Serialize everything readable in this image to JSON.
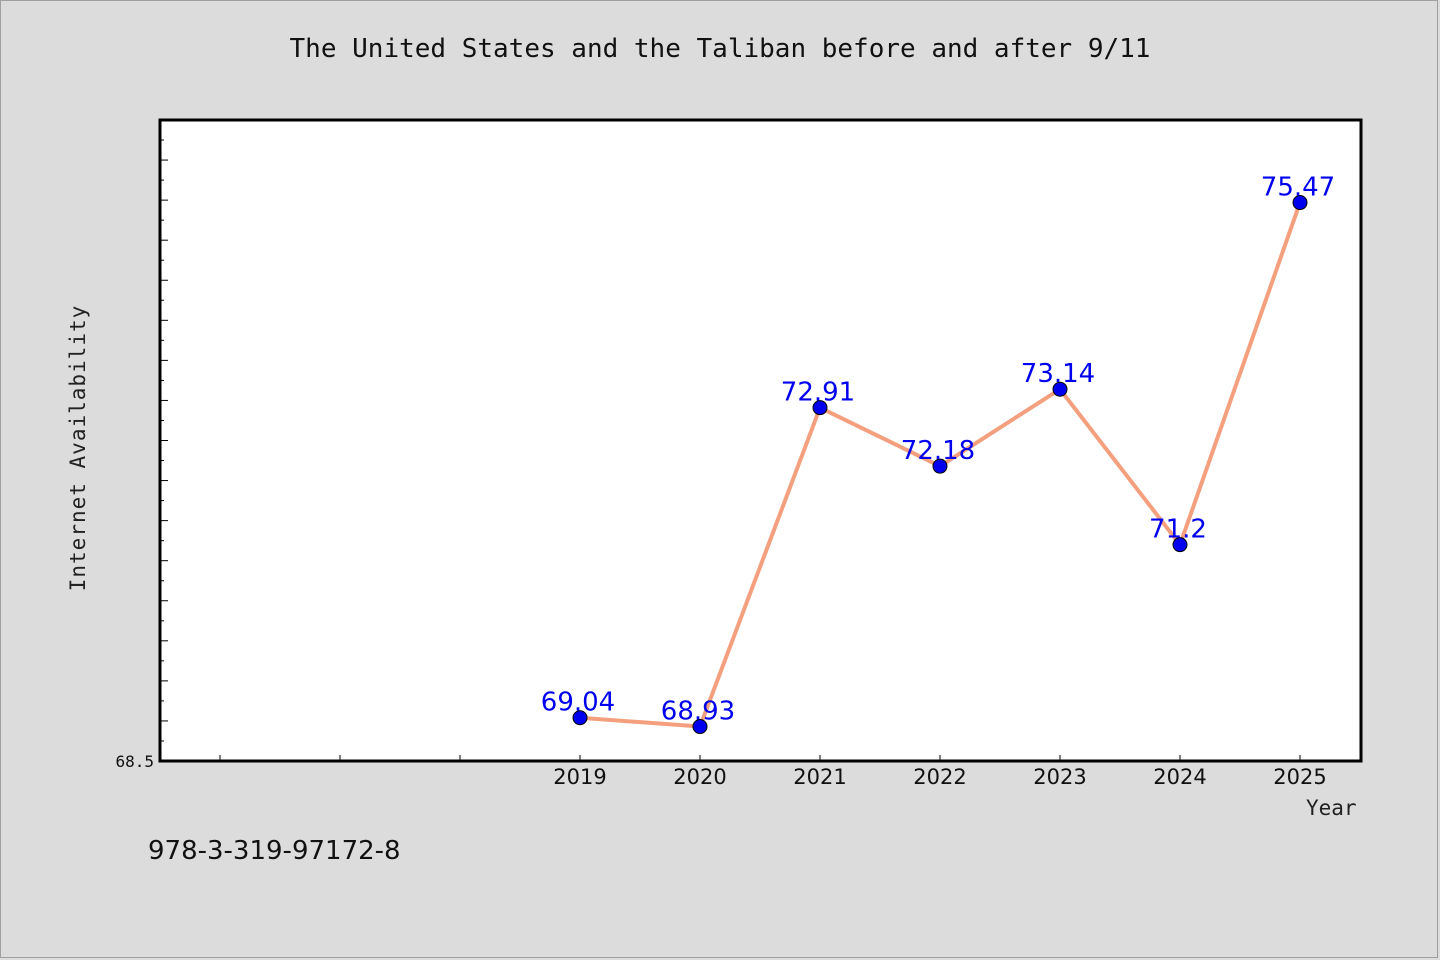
{
  "chart_data": {
    "type": "line",
    "title": "The United States and the Taliban before and after 9/11",
    "xlabel": "Year",
    "ylabel": "Internet Availability",
    "categories": [
      "2019",
      "2020",
      "2021",
      "2022",
      "2023",
      "2024",
      "2025"
    ],
    "series": [
      {
        "values": [
          69.04,
          68.93,
          72.91,
          72.18,
          73.14,
          71.2,
          75.47
        ]
      }
    ],
    "data_labels": [
      "69.04",
      "68.93",
      "72.91",
      "72.18",
      "73.14",
      "71.2",
      "75.47"
    ],
    "y_tick_labels": [
      "68.5"
    ],
    "ylim": [
      68.5,
      76.5
    ],
    "grid": false,
    "line_color": "#f4a07f",
    "marker_color": "#0000ee",
    "label_color": "#0000ee",
    "background_color": "#dcdcdc",
    "plot_background_color": "#ffffff"
  },
  "footer": {
    "code": "978-3-319-97172-8"
  }
}
